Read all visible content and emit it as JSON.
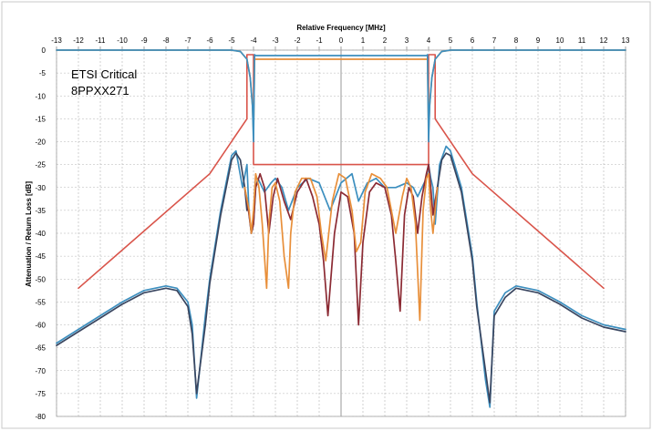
{
  "chart_data": {
    "type": "line",
    "xlabel": "Relative Frequency [MHz]",
    "ylabel": "Attenuation / Return Loss [dB]",
    "xlim": [
      -13,
      13
    ],
    "ylim": [
      -80,
      0
    ],
    "x_ticks": [
      "-13",
      "-12",
      "-11",
      "-10",
      "-9",
      "-8",
      "-7",
      "-6",
      "-5",
      "-4",
      "-3",
      "-2",
      "-1",
      "0",
      "1",
      "2",
      "3",
      "4",
      "5",
      "6",
      "7",
      "8",
      "9",
      "10",
      "11",
      "12",
      "13"
    ],
    "y_ticks": [
      "0",
      "-5",
      "-10",
      "-15",
      "-20",
      "-25",
      "-30",
      "-35",
      "-40",
      "-45",
      "-50",
      "-55",
      "-60",
      "-65",
      "-70",
      "-75",
      "-80"
    ],
    "annotation": [
      "ETSI Critical",
      "8PPXX271"
    ],
    "grid": true,
    "colors": {
      "mask": "#d9544a",
      "dark_red": "#8b2a33",
      "orange": "#e88f3a",
      "blue": "#3d8fbf",
      "dark": "#3a4660",
      "zero_line": "#999999",
      "grid": "#b5b5b5"
    },
    "series": [
      {
        "color_key": "mask",
        "x": [
          -12,
          -6,
          -4.3,
          -4.3,
          -4,
          -4,
          4,
          4,
          4.3,
          4.3,
          6,
          12
        ],
        "y": [
          -52,
          -27,
          -15,
          -1,
          -1,
          -25,
          -25,
          -1,
          -1,
          -15,
          -27,
          -52
        ]
      },
      {
        "color_key": "orange",
        "x": [
          -13,
          -5,
          -4.6,
          -4.3,
          -4.15,
          -4.05,
          -4,
          -3.95,
          3.95,
          4,
          4.05,
          4.15,
          4.3,
          4.6,
          5,
          13
        ],
        "y": [
          0,
          0,
          -0.3,
          -2,
          -6,
          -12,
          -18,
          -2,
          -2,
          -18,
          -12,
          -6,
          -2,
          -0.3,
          0,
          0
        ]
      },
      {
        "color_key": "blue",
        "x": [
          -13,
          -5,
          -4.6,
          -4.3,
          -4.15,
          -4.05,
          -4,
          -3.95,
          -3.9,
          3.9,
          3.95,
          4,
          4.05,
          4.15,
          4.3,
          4.6,
          5,
          13
        ],
        "y": [
          0,
          0,
          -0.3,
          -2,
          -6,
          -12,
          -20,
          -1,
          -1.2,
          -1.2,
          -1,
          -20,
          -12,
          -6,
          -2,
          -0.3,
          0,
          0
        ]
      },
      {
        "color_key": "blue",
        "x": [
          -13,
          -12,
          -11,
          -10,
          -9,
          -8,
          -7.5,
          -7,
          -6.8,
          -6.6,
          -6.2,
          -6,
          -5.5,
          -5,
          -4.8,
          -4.5,
          -4.3,
          -4.2,
          -4.1,
          -4.0,
          -3.9,
          -3.8,
          -3.5,
          -3.2,
          -3.0,
          -2.7,
          -2.4,
          -2.0,
          -1.5,
          -1.0,
          -0.5,
          0,
          0.5,
          0.8,
          1.2,
          1.6,
          2.0,
          2.5,
          3.0,
          3.3,
          3.5,
          3.7,
          3.9,
          4.0,
          4.1,
          4.2,
          4.3,
          4.5,
          4.8,
          5,
          5.5,
          6,
          6.2,
          6.6,
          6.8,
          7,
          7.5,
          8,
          9,
          10,
          11,
          12,
          13
        ],
        "y": [
          -64,
          -61,
          -58,
          -55,
          -52.5,
          -51.5,
          -52,
          -55,
          -60,
          -76,
          -58,
          -50,
          -35,
          -23,
          -22,
          -30,
          -25,
          -36,
          -40,
          -38,
          -30,
          -28,
          -31,
          -29,
          -28,
          -30,
          -35,
          -30,
          -28,
          -29,
          -35,
          -29,
          -27,
          -33,
          -29,
          -28,
          -30,
          -30,
          -29,
          -30,
          -32,
          -30,
          -28,
          -25,
          -28,
          -30,
          -38,
          -25,
          -21,
          -22,
          -30,
          -45,
          -55,
          -72,
          -78,
          -57,
          -53,
          -51.5,
          -52.5,
          -55,
          -58,
          -60,
          -61
        ]
      },
      {
        "color_key": "dark",
        "x": [
          -13,
          -12,
          -11,
          -10,
          -9,
          -8,
          -7.5,
          -7,
          -6.8,
          -6.6,
          -6.2,
          -6,
          -5.5,
          -5,
          -4.8,
          -4.6,
          -4.4,
          -4.3
        ],
        "y": [
          -64.5,
          -61.5,
          -58.5,
          -55.5,
          -53,
          -52,
          -52.5,
          -56,
          -62,
          -75,
          -60,
          -51,
          -36,
          -24,
          -22.5,
          -24,
          -30,
          -35
        ]
      },
      {
        "color_key": "dark",
        "x": [
          4.3,
          4.4,
          4.6,
          4.8,
          5,
          5.5,
          6,
          6.2,
          6.6,
          6.8,
          7,
          7.5,
          8,
          9,
          10,
          11,
          12,
          13
        ],
        "y": [
          -35,
          -30,
          -24,
          -22.5,
          -23,
          -31,
          -46,
          -56,
          -70,
          -77,
          -58,
          -54,
          -52,
          -53,
          -55.5,
          -58.5,
          -60.5,
          -61.5
        ]
      },
      {
        "color_key": "dark_red",
        "x": [
          -4.4,
          -4.2,
          -4.1,
          -4.0,
          -3.9,
          -3.7,
          -3.5,
          -3.3,
          -3.1,
          -2.9,
          -2.6,
          -2.3,
          -2.0,
          -1.6,
          -1.3,
          -1.0,
          -0.8,
          -0.6,
          -0.3,
          0,
          0.3,
          0.6,
          0.8,
          1.0,
          1.3,
          1.6,
          2.0,
          2.3,
          2.5,
          2.7,
          2.9,
          3.1,
          3.3,
          3.5,
          3.7,
          3.9,
          4.0,
          4.1,
          4.2,
          4.4
        ],
        "y": [
          -30,
          -36,
          -40,
          -38,
          -30,
          -27,
          -30,
          -40,
          -32,
          -28,
          -33,
          -37,
          -31,
          -28,
          -32,
          -38,
          -46,
          -58,
          -40,
          -31,
          -32,
          -40,
          -60,
          -42,
          -31,
          -29,
          -30,
          -36,
          -46,
          -57,
          -36,
          -30,
          -32,
          -40,
          -32,
          -27,
          -25,
          -30,
          -36,
          -30
        ]
      },
      {
        "color_key": "orange",
        "x": [
          -4.4,
          -4.2,
          -4.1,
          -4.0,
          -3.9,
          -3.75,
          -3.6,
          -3.4,
          -3.3,
          -3.15,
          -3.0,
          -2.8,
          -2.6,
          -2.4,
          -2.3,
          -2.1,
          -1.8,
          -1.4,
          -1.1,
          -0.9,
          -0.7,
          -0.4,
          -0.1,
          0.2,
          0.5,
          0.7,
          0.9,
          1.1,
          1.4,
          1.8,
          2.1,
          2.3,
          2.5,
          2.8,
          3.0,
          3.2,
          3.4,
          3.6,
          3.75,
          3.9,
          4.0,
          4.1,
          4.2,
          4.4
        ],
        "y": [
          -30,
          -35,
          -40,
          -35,
          -27,
          -30,
          -38,
          -52,
          -38,
          -30,
          -29,
          -33,
          -45,
          -52,
          -40,
          -31,
          -28,
          -28,
          -32,
          -40,
          -46,
          -33,
          -27,
          -28,
          -35,
          -44,
          -42,
          -31,
          -27,
          -28,
          -30,
          -35,
          -40,
          -32,
          -28,
          -30,
          -38,
          -59,
          -35,
          -28,
          -27,
          -35,
          -40,
          -30
        ]
      }
    ]
  }
}
